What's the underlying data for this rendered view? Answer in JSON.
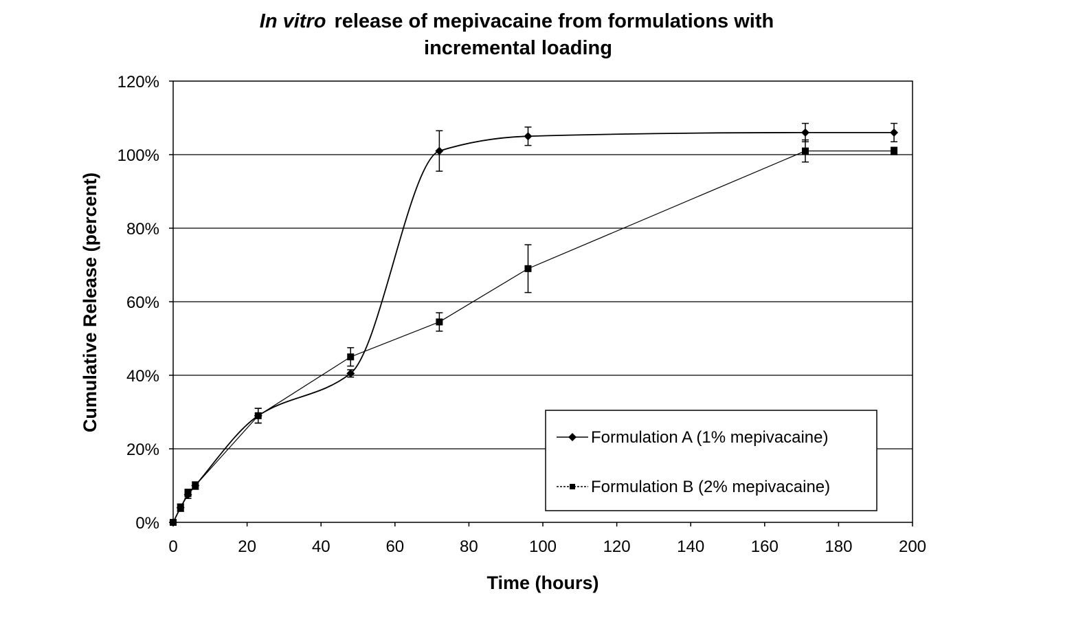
{
  "chart_data": {
    "type": "line",
    "title_italic": "In vitro",
    "title_rest": "release of mepivacaine from formulations with",
    "title_line2": "incremental loading",
    "xlabel": "Time (hours)",
    "ylabel": "Cumulative Release (percent)",
    "xlim": [
      0,
      200
    ],
    "ylim": [
      0,
      120
    ],
    "x_ticks": [
      0,
      20,
      40,
      60,
      80,
      100,
      120,
      140,
      160,
      180,
      200
    ],
    "x_tick_labels": [
      "0",
      "20",
      "40",
      "60",
      "80",
      "100",
      "120",
      "140",
      "160",
      "180",
      "200"
    ],
    "y_ticks": [
      0,
      20,
      40,
      60,
      80,
      100,
      120
    ],
    "y_tick_labels": [
      "0%",
      "20%",
      "40%",
      "60%",
      "80%",
      "100%",
      "120%"
    ],
    "grid": "horizontal",
    "legend_position": "bottom-right",
    "series": [
      {
        "name": "Formulation A (1% mepivacaine)",
        "marker": "diamond",
        "smooth": true,
        "x": [
          0,
          2,
          4,
          6,
          23,
          48,
          72,
          96,
          171,
          195
        ],
        "y": [
          0,
          4,
          7.5,
          10,
          29,
          40.5,
          101,
          105,
          106,
          106
        ],
        "error": [
          0,
          1,
          1,
          1,
          2,
          1,
          5.5,
          2.5,
          2.5,
          2.5
        ]
      },
      {
        "name": "Formulation B (2% mepivacaine)",
        "marker": "square",
        "smooth": false,
        "x": [
          0,
          2,
          4,
          6,
          23,
          48,
          72,
          96,
          171,
          195
        ],
        "y": [
          0,
          4,
          8,
          10,
          29,
          45,
          54.5,
          69,
          101,
          101
        ],
        "error": [
          0,
          1,
          1,
          1,
          2,
          2.5,
          2.5,
          6.5,
          3,
          1
        ]
      }
    ]
  }
}
